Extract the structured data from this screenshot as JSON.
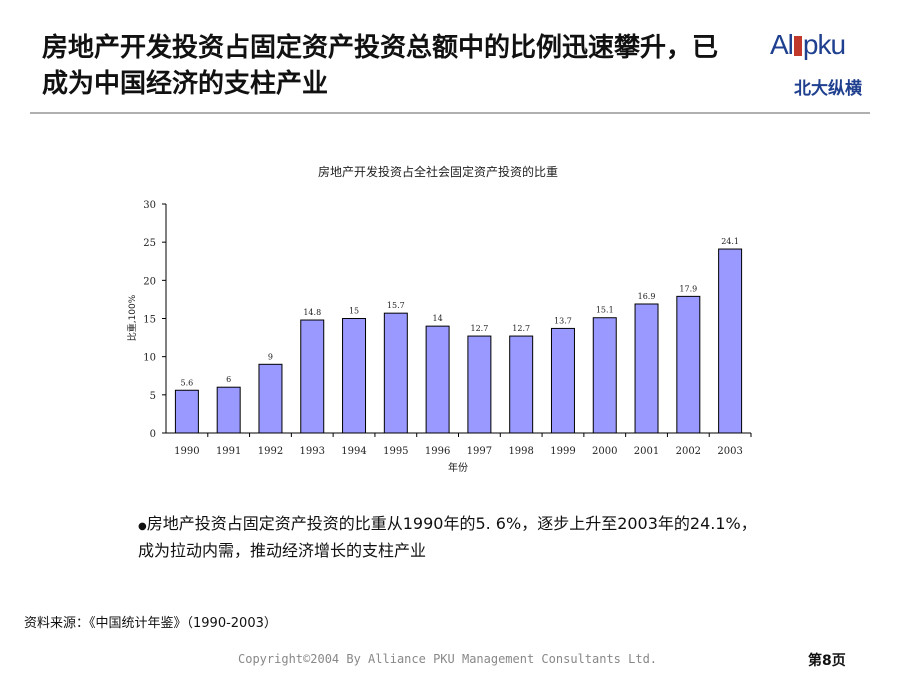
{
  "header": {
    "title": "房地产开发投资占固定资产投资总额中的比例迅速攀升，已成为中国经济的支柱产业"
  },
  "logo": {
    "left_text": "Al",
    "right_text": "pku",
    "sub_text": "北大纵横",
    "brand_color": "#1f3f8f",
    "accent_color": "#c0392b"
  },
  "chart_data": {
    "type": "bar",
    "title": "房地产开发投资占全社会固定资产投资的比重",
    "xlabel": "年份",
    "ylabel": "比重,100%",
    "categories": [
      "1990",
      "1991",
      "1992",
      "1993",
      "1994",
      "1995",
      "1996",
      "1997",
      "1998",
      "1999",
      "2000",
      "2001",
      "2002",
      "2003"
    ],
    "values": [
      5.6,
      6,
      9,
      14.8,
      15,
      15.7,
      14,
      12.7,
      12.7,
      13.7,
      15.1,
      16.9,
      17.9,
      24.1
    ],
    "data_labels": [
      "5.6",
      "6",
      "9",
      "14.8",
      "15",
      "15.7",
      "14",
      "12.7",
      "12.7",
      "13.7",
      "15.1",
      "16.9",
      "17.9",
      "24.1"
    ],
    "yticks": [
      "0",
      "5",
      "10",
      "15",
      "20",
      "25",
      "30"
    ],
    "ylim": [
      0,
      30
    ],
    "grid": false,
    "bar_color": "#9999ff"
  },
  "bullet": {
    "marker": "●",
    "text": "房地产投资占固定资产投资的比重从1990年的5. 6%，逐步上升至2003年的24.1%，成为拉动内需，推动经济增长的支柱产业"
  },
  "footer": {
    "source": "资料来源：《中国统计年鉴》（1990-2003）",
    "copyright": "Copyright©2004 By Alliance PKU Management Consultants Ltd.",
    "page": "第8页"
  }
}
